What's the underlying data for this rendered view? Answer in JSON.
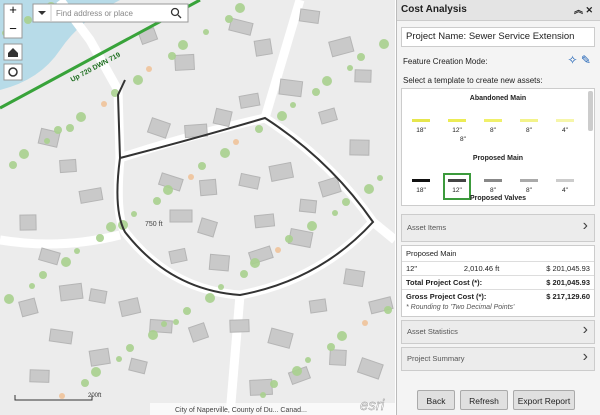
{
  "map": {
    "search_placeholder": "Find address or place",
    "labels": {
      "pipe": "Up 720 DWN 719",
      "distance": "750 ft",
      "scale": "200ft",
      "attribution": "City of Naperville, County of Du... Canad...",
      "logo": "esri"
    }
  },
  "panel": {
    "title": "Cost Analysis",
    "project_name": "Project Name: Sewer Service Extension",
    "feature_creation_mode": "Feature Creation Mode:",
    "template_prompt": "Select a template to create new assets:",
    "templates": [
      {
        "group": "Abandoned Main",
        "items": [
          "18\"",
          "12\"",
          "8\"",
          "8\"",
          "4\""
        ]
      },
      {
        "group": "Proposed Main",
        "items": [
          "18\"",
          "12\"",
          "8\"",
          "8\"",
          "4\""
        ]
      }
    ],
    "floating_label": "8\"",
    "next_group": "Proposed Valves",
    "asset_items": "Asset Items",
    "cost_table": {
      "group": "Proposed Main",
      "row": [
        "12\"",
        "2,010.46 ft",
        "$ 201,045.93"
      ],
      "totals": [
        [
          "Total Project Cost (*):",
          "$ 201,045.93"
        ],
        [
          "Gross Project Cost (*):",
          "$ 217,129.60"
        ]
      ],
      "note": "* Rounding to 'Two Decimal Points'"
    },
    "sections": [
      "Asset Statistics",
      "Project Summary"
    ],
    "buttons": [
      "Back",
      "Refresh",
      "Export Report"
    ]
  }
}
